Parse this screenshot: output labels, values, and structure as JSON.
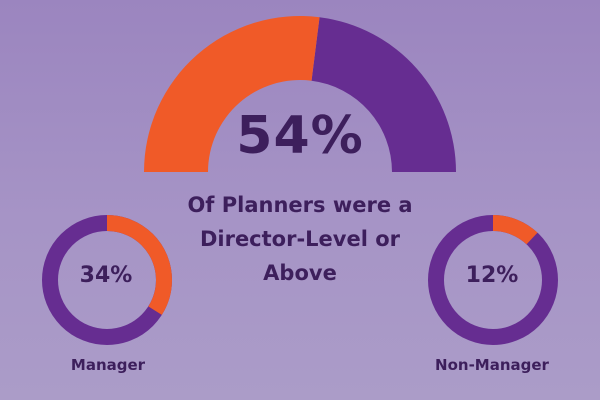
{
  "colors": {
    "accent": "#f05a28",
    "base": "#662d91",
    "text": "#3d1f5c",
    "background": "#a08fc3"
  },
  "hero": {
    "value": "54%",
    "caption_lines": [
      "Of Planners were a",
      "Director-Level or",
      "Above"
    ]
  },
  "donuts": [
    {
      "value": "34%",
      "label": "Manager"
    },
    {
      "value": "12%",
      "label": "Non-Manager"
    }
  ],
  "chart_data": [
    {
      "type": "pie",
      "style": "semicircle-gauge",
      "values": [
        54,
        46
      ],
      "value_label": "54%",
      "title": "Of Planners were a Director-Level or Above"
    },
    {
      "type": "pie",
      "style": "donut",
      "values": [
        34,
        66
      ],
      "value_label": "34%",
      "label": "Manager"
    },
    {
      "type": "pie",
      "style": "donut",
      "values": [
        12,
        88
      ],
      "value_label": "12%",
      "label": "Non-Manager"
    }
  ]
}
